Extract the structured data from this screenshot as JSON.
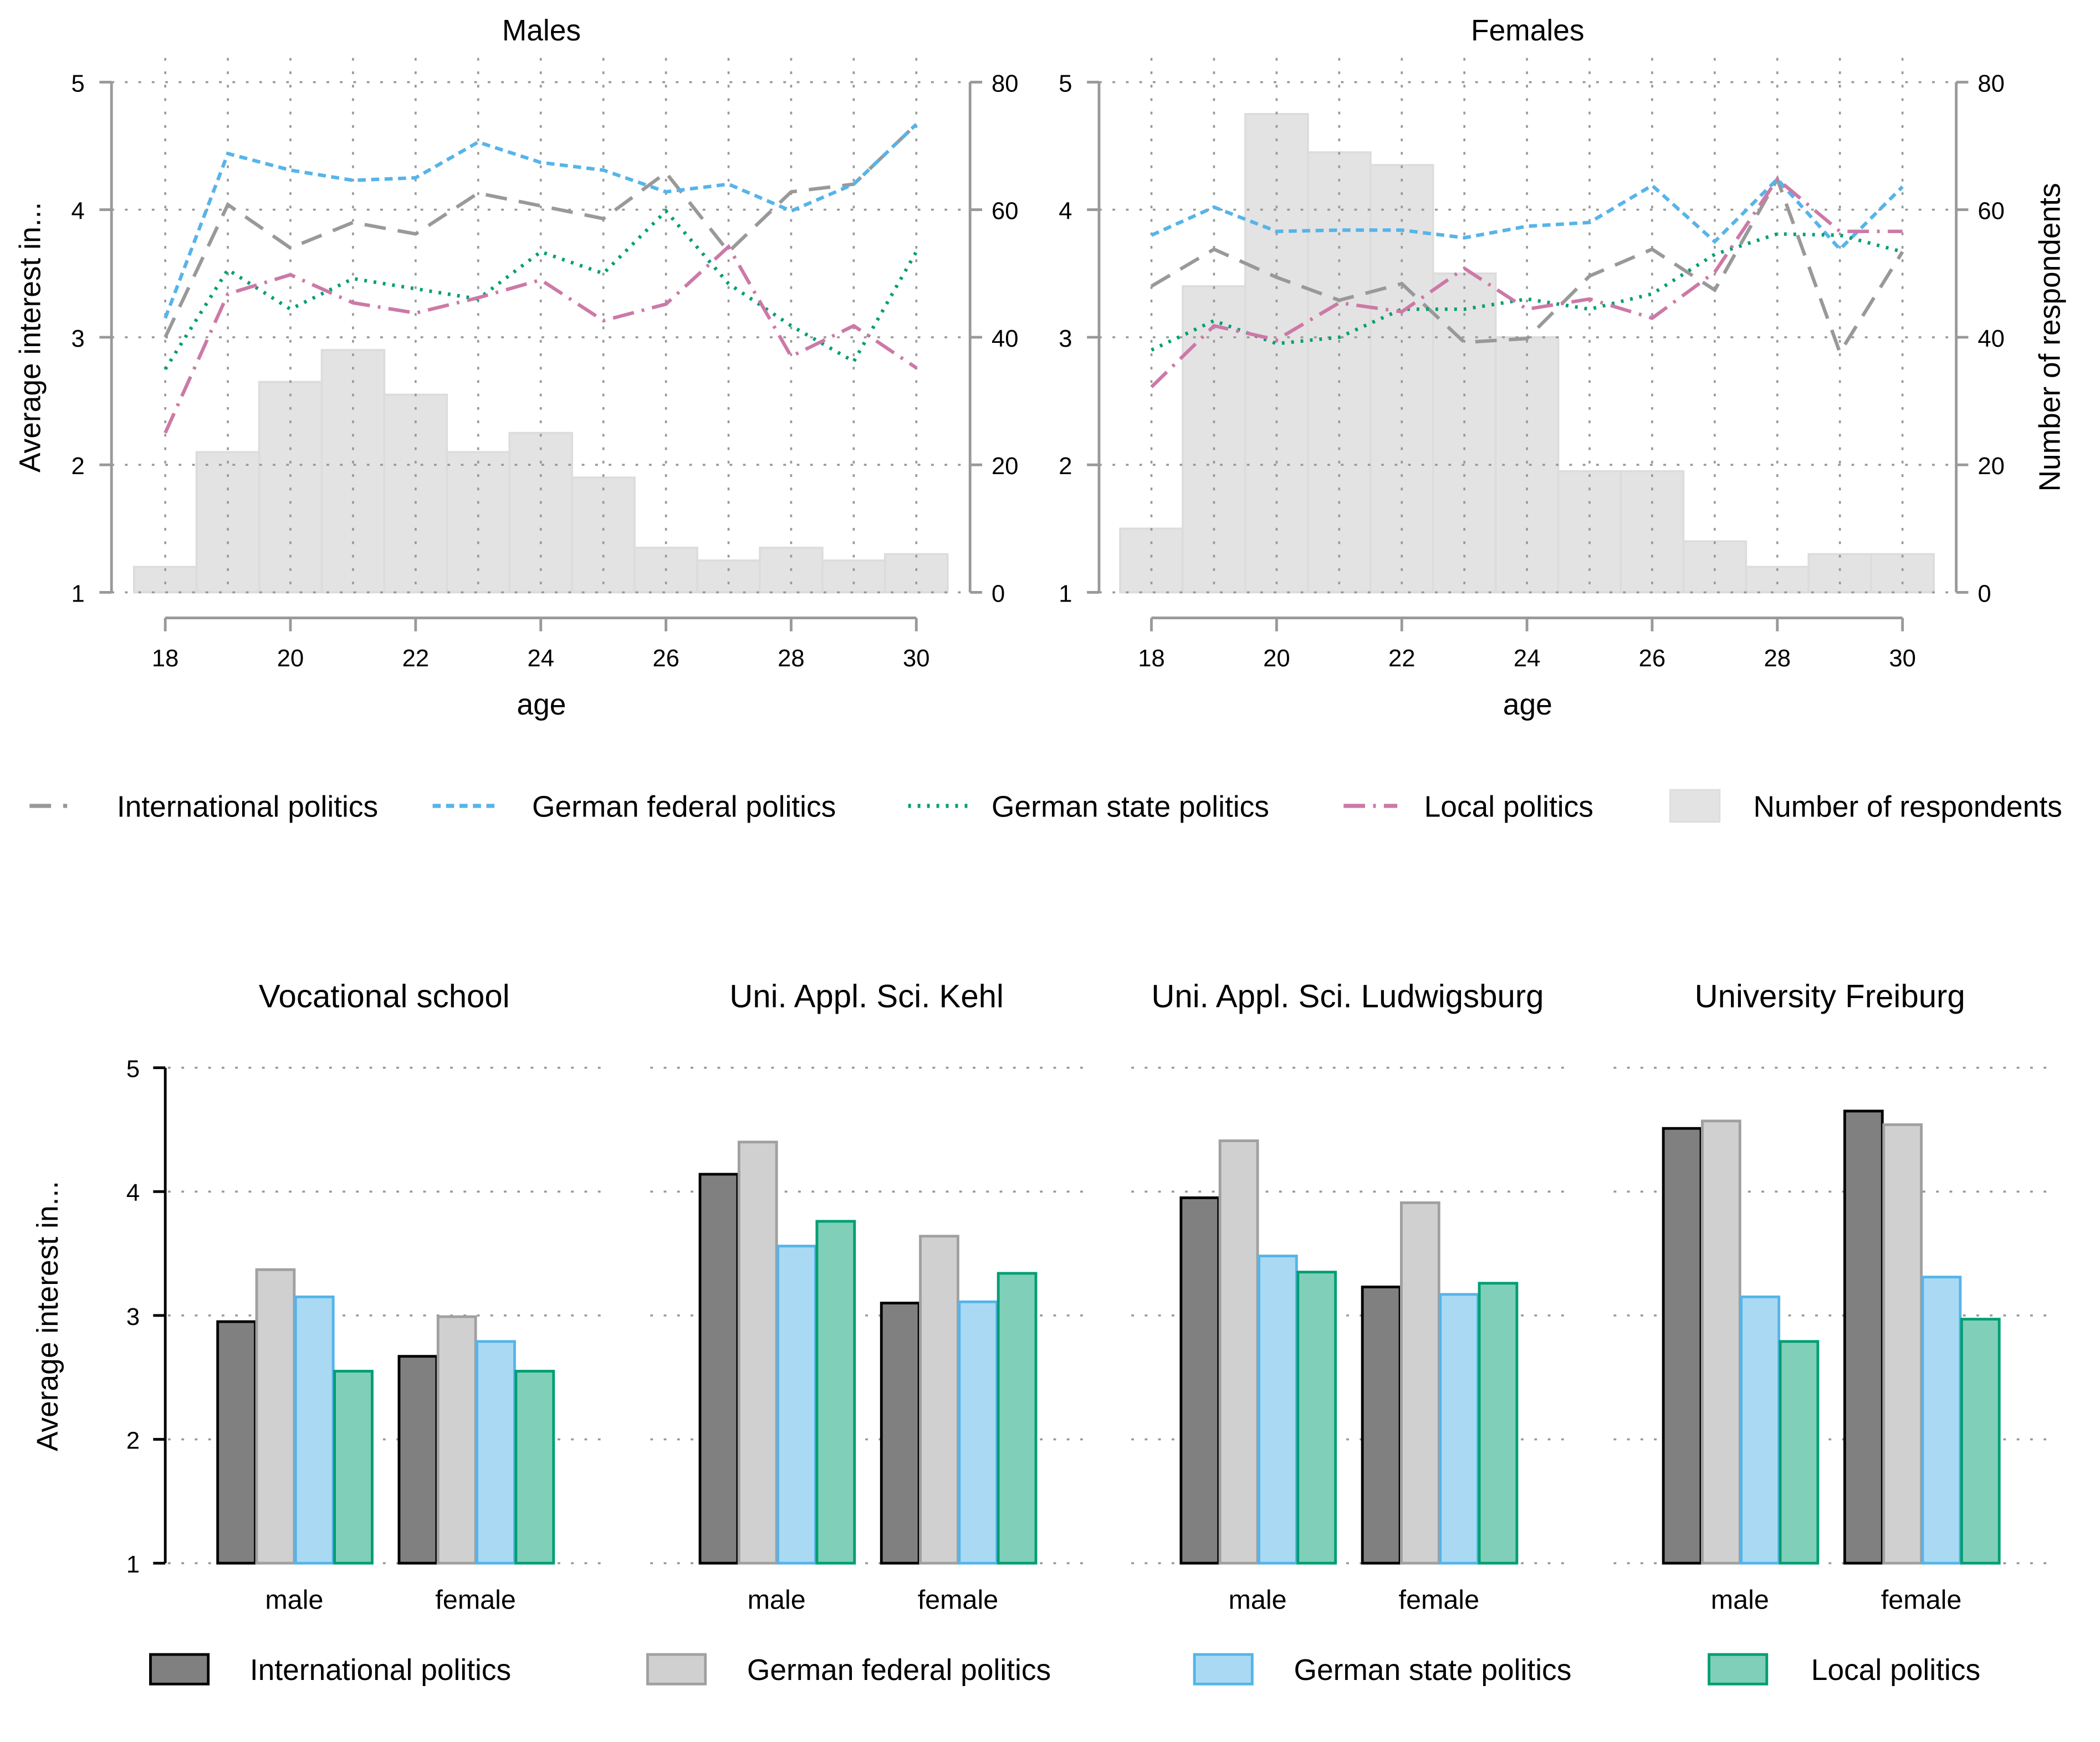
{
  "chart_data": [
    {
      "type": "line",
      "title": "Males",
      "xlabel": "age",
      "ylabel": "Average interest in...",
      "y2label": "Number of respondents",
      "ylim": [
        1,
        5
      ],
      "y2lim": [
        0,
        80
      ],
      "x": [
        18,
        19,
        20,
        21,
        22,
        23,
        24,
        25,
        26,
        27,
        28,
        29,
        30
      ],
      "xticks": [
        "18",
        "20",
        "22",
        "24",
        "26",
        "28",
        "30"
      ],
      "yticks": [
        "1",
        "2",
        "3",
        "4",
        "5"
      ],
      "y2ticks": [
        "0",
        "20",
        "40",
        "60",
        "80"
      ],
      "grid": true,
      "series": [
        {
          "name": "International politics",
          "values": [
            3.0,
            4.04,
            3.7,
            3.9,
            3.81,
            4.13,
            4.03,
            3.93,
            4.29,
            3.67,
            4.14,
            4.2,
            4.67
          ]
        },
        {
          "name": "German federal politics",
          "values": [
            3.15,
            4.44,
            4.31,
            4.23,
            4.25,
            4.53,
            4.37,
            4.31,
            4.14,
            4.2,
            3.99,
            4.2,
            4.67
          ]
        },
        {
          "name": "German state politics",
          "values": [
            2.75,
            3.53,
            3.22,
            3.46,
            3.38,
            3.3,
            3.67,
            3.5,
            3.99,
            3.42,
            3.09,
            2.81,
            3.67
          ]
        },
        {
          "name": "Local politics",
          "values": [
            2.25,
            3.34,
            3.49,
            3.27,
            3.19,
            3.31,
            3.45,
            3.13,
            3.26,
            3.71,
            2.85,
            3.09,
            2.76
          ]
        }
      ],
      "respondents": {
        "name": "Number of respondents",
        "values": [
          4,
          22,
          33,
          38,
          31,
          22,
          25,
          18,
          7,
          5,
          7,
          5,
          6
        ]
      }
    },
    {
      "type": "line",
      "title": "Females",
      "xlabel": "age",
      "ylabel": "",
      "y2label": "Number of respondents",
      "ylim": [
        1,
        5
      ],
      "y2lim": [
        0,
        80
      ],
      "x": [
        18,
        19,
        20,
        21,
        22,
        23,
        24,
        25,
        26,
        27,
        28,
        29,
        30
      ],
      "xticks": [
        "18",
        "20",
        "22",
        "24",
        "26",
        "28",
        "30"
      ],
      "yticks": [
        "1",
        "2",
        "3",
        "4",
        "5"
      ],
      "y2ticks": [
        "0",
        "20",
        "40",
        "60",
        "80"
      ],
      "grid": true,
      "series": [
        {
          "name": "International politics",
          "values": [
            3.4,
            3.69,
            3.47,
            3.29,
            3.42,
            2.96,
            2.99,
            3.48,
            3.69,
            3.37,
            4.24,
            2.88,
            3.67
          ]
        },
        {
          "name": "German federal politics",
          "values": [
            3.8,
            4.02,
            3.83,
            3.84,
            3.84,
            3.78,
            3.87,
            3.9,
            4.19,
            3.75,
            4.24,
            3.69,
            4.18
          ]
        },
        {
          "name": "German state politics",
          "values": [
            2.9,
            3.13,
            2.95,
            3.0,
            3.22,
            3.22,
            3.3,
            3.22,
            3.34,
            3.65,
            3.81,
            3.8,
            3.67
          ]
        },
        {
          "name": "Local politics",
          "values": [
            2.61,
            3.09,
            2.98,
            3.27,
            3.2,
            3.54,
            3.22,
            3.3,
            3.15,
            3.51,
            4.24,
            3.83,
            3.83
          ]
        }
      ],
      "respondents": {
        "name": "Number of respondents",
        "values": [
          10,
          48,
          75,
          69,
          67,
          50,
          40,
          19,
          19,
          8,
          4,
          6,
          6
        ]
      }
    },
    {
      "type": "bar",
      "ylabel": "Average interest in...",
      "ylim": [
        1,
        5
      ],
      "yticks": [
        "1",
        "2",
        "3",
        "4",
        "5"
      ],
      "grid": true,
      "categories": [
        "male",
        "female"
      ],
      "series_names": [
        "International politics",
        "German federal politics",
        "German state politics",
        "Local politics"
      ],
      "panels": [
        {
          "title": "Vocational school",
          "values": [
            [
              2.95,
              3.37,
              3.15,
              2.55
            ],
            [
              2.67,
              2.99,
              2.79,
              2.55
            ]
          ]
        },
        {
          "title": "Uni. Appl. Sci. Kehl",
          "values": [
            [
              4.14,
              4.4,
              3.56,
              3.76
            ],
            [
              3.1,
              3.64,
              3.11,
              3.34
            ]
          ]
        },
        {
          "title": "Uni. Appl. Sci. Ludwigsburg",
          "values": [
            [
              3.95,
              4.41,
              3.48,
              3.35
            ],
            [
              3.23,
              3.91,
              3.17,
              3.26
            ]
          ]
        },
        {
          "title": "University Freiburg",
          "values": [
            [
              4.51,
              4.57,
              3.15,
              2.79
            ],
            [
              4.65,
              4.54,
              3.31,
              2.97
            ]
          ]
        }
      ]
    }
  ],
  "legend_top": [
    {
      "label": "International politics",
      "color": "#999999"
    },
    {
      "label": "German federal politics",
      "color": "#56b4e9"
    },
    {
      "label": "German state politics",
      "color": "#009e73"
    },
    {
      "label": "Local politics",
      "color": "#cc79a7"
    },
    {
      "label": "Number of respondents",
      "color": "#e3e3e3"
    }
  ],
  "legend_bottom": [
    {
      "label": "International politics",
      "fill": "#808080",
      "stroke": "#000000"
    },
    {
      "label": "German federal politics",
      "fill": "#d0d0d0",
      "stroke": "#a0a0a0"
    },
    {
      "label": "German state politics",
      "fill": "#aadaf3",
      "stroke": "#56b4e9"
    },
    {
      "label": "Local politics",
      "fill": "#80cfb9",
      "stroke": "#009e73"
    }
  ]
}
